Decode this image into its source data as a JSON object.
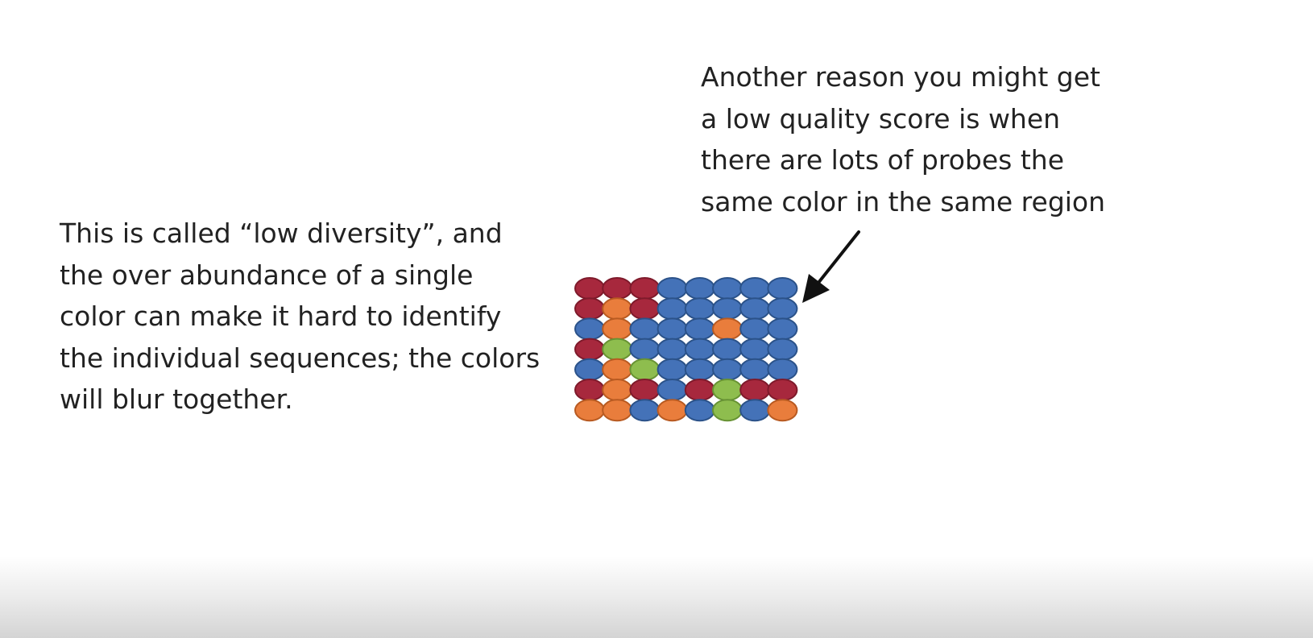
{
  "annotations": {
    "right_text": [
      "Another reason you might get",
      "a low quality score is when",
      "there are lots of probes the",
      "same color in the same region"
    ],
    "left_text": [
      "This is called “low diversity”, and",
      "the over abundance of a single",
      "color can make it hard to identify",
      "the individual sequences; the colors",
      "will blur together."
    ]
  },
  "colors": {
    "R": "#a7283d",
    "O": "#e97d3c",
    "B": "#4472b8",
    "G": "#8ebd4e"
  },
  "stroke_colors": {
    "R": "#7e1a2b",
    "O": "#b85a21",
    "B": "#2b5289",
    "G": "#679234"
  },
  "probe_grid": [
    [
      "R",
      "R",
      "R",
      "B",
      "B",
      "B",
      "B",
      "B"
    ],
    [
      "R",
      "O",
      "R",
      "B",
      "B",
      "B",
      "B",
      "B"
    ],
    [
      "B",
      "O",
      "B",
      "B",
      "B",
      "O",
      "B",
      "B"
    ],
    [
      "R",
      "G",
      "B",
      "B",
      "B",
      "B",
      "B",
      "B"
    ],
    [
      "B",
      "O",
      "G",
      "B",
      "B",
      "B",
      "B",
      "B"
    ],
    [
      "R",
      "O",
      "R",
      "B",
      "R",
      "G",
      "R",
      "R"
    ],
    [
      "O",
      "O",
      "B",
      "O",
      "B",
      "G",
      "B",
      "O"
    ]
  ]
}
